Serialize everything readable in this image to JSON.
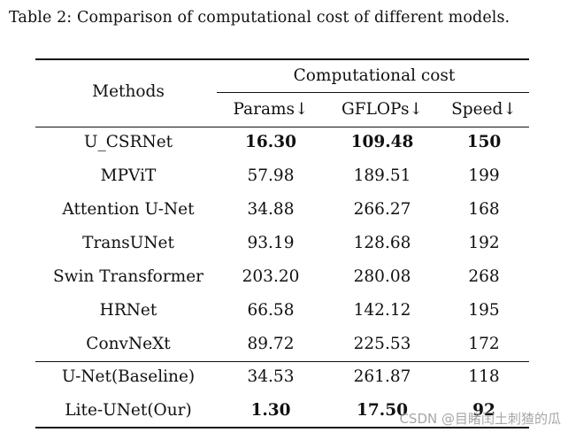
{
  "caption": "Table 2: Comparison of computational cost of different models.",
  "header": {
    "methods": "Methods",
    "group": "Computational cost",
    "params": "Params↓",
    "gflops": "GFLOPs↓",
    "speed": "Speed↓"
  },
  "rows": [
    {
      "method": "U_CSRNet",
      "params": "16.30",
      "gflops": "109.48",
      "speed": "150"
    },
    {
      "method": "MPViT",
      "params": "57.98",
      "gflops": "189.51",
      "speed": "199"
    },
    {
      "method": "Attention U-Net",
      "params": "34.88",
      "gflops": "266.27",
      "speed": "168"
    },
    {
      "method": "TransUNet",
      "params": "93.19",
      "gflops": "128.68",
      "speed": "192"
    },
    {
      "method": "Swin Transformer",
      "params": "203.20",
      "gflops": "280.08",
      "speed": "268"
    },
    {
      "method": "HRNet",
      "params": "66.58",
      "gflops": "142.12",
      "speed": "195"
    },
    {
      "method": "ConvNeXt",
      "params": "89.72",
      "gflops": "225.53",
      "speed": "172"
    },
    {
      "method": "U-Net(Baseline)",
      "params": "34.53",
      "gflops": "261.87",
      "speed": "118"
    },
    {
      "method": "Lite-UNet(Our)",
      "params": "1.30",
      "gflops": "17.50",
      "speed": "92"
    }
  ],
  "watermark": "CSDN @目睹闰土刺猹的瓜"
}
